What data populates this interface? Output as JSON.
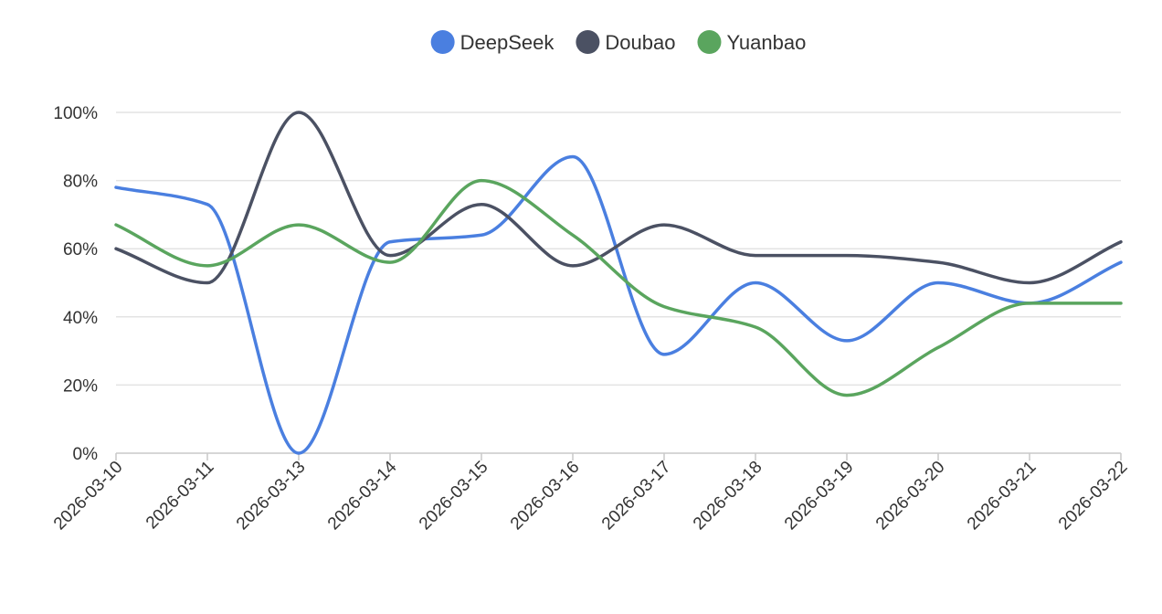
{
  "chart_data": {
    "type": "line",
    "title": "",
    "xlabel": "",
    "ylabel": "",
    "categories": [
      "2026-03-10",
      "2026-03-11",
      "2026-03-13",
      "2026-03-14",
      "2026-03-15",
      "2026-03-16",
      "2026-03-17",
      "2026-03-18",
      "2026-03-19",
      "2026-03-20",
      "2026-03-21",
      "2026-03-22"
    ],
    "ylim": [
      0,
      100
    ],
    "y_ticks": [
      "0%",
      "20%",
      "40%",
      "60%",
      "80%",
      "100%"
    ],
    "y_tick_values": [
      0,
      20,
      40,
      60,
      80,
      100
    ],
    "grid": true,
    "legend_position": "top-center",
    "smooth": true,
    "series": [
      {
        "name": "DeepSeek",
        "color": "#4a7fe0",
        "values": [
          78,
          73,
          0,
          62,
          64,
          87,
          29,
          50,
          33,
          50,
          44,
          56
        ]
      },
      {
        "name": "Doubao",
        "color": "#4b5163",
        "values": [
          60,
          50,
          100,
          58,
          73,
          55,
          67,
          58,
          58,
          56,
          50,
          62
        ]
      },
      {
        "name": "Yuanbao",
        "color": "#5aa55e",
        "values": [
          67,
          55,
          67,
          56,
          80,
          64,
          43,
          37,
          17,
          31,
          44,
          44
        ]
      }
    ]
  }
}
